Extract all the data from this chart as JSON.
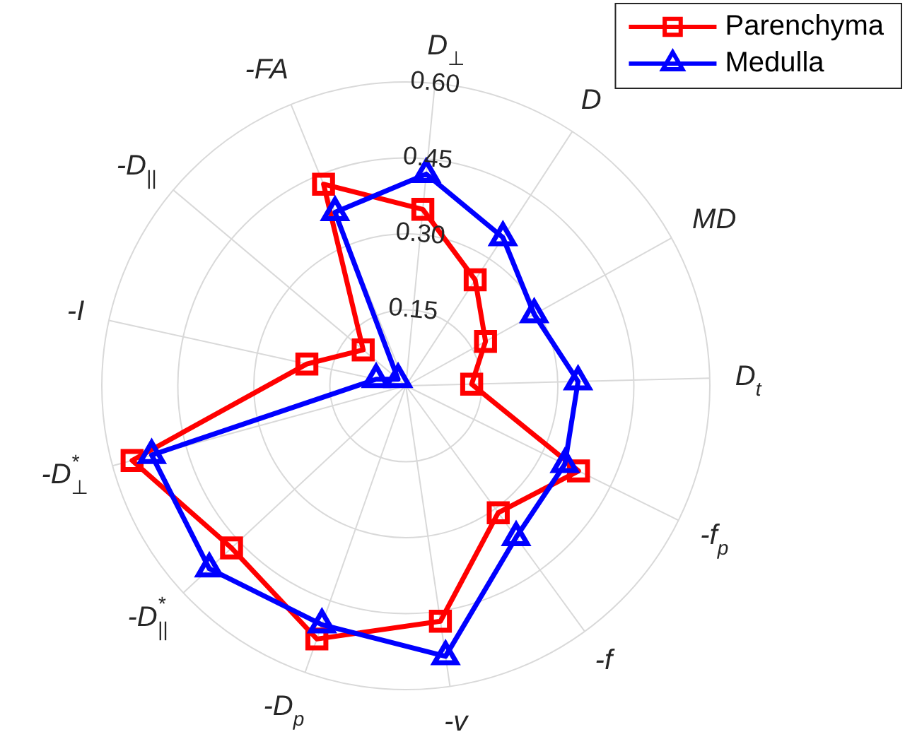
{
  "chart_data": {
    "type": "radar",
    "categories": [
      "D$_{⊥}$",
      "D",
      "MD",
      "D$_{t}$",
      "-f$_{p}$",
      "-f",
      "-v",
      "-D$_{p}$",
      "-D$^{*}$$_{||}$",
      "-D$^{*}$$_{⊥}$",
      "-I",
      "-D$_{||}$",
      "-FA"
    ],
    "series": [
      {
        "name": "Parenchyma",
        "color": "#ff0000",
        "marker": "square",
        "values": [
          0.35,
          0.25,
          0.18,
          0.13,
          0.38,
          0.31,
          0.47,
          0.53,
          0.47,
          0.56,
          0.2,
          0.11,
          0.43
        ]
      },
      {
        "name": "Medulla",
        "color": "#0000ff",
        "marker": "triangle",
        "values": [
          0.42,
          0.35,
          0.29,
          0.34,
          0.35,
          0.37,
          0.54,
          0.5,
          0.53,
          0.52,
          0.06,
          0.02,
          0.37
        ]
      }
    ],
    "ylim": [
      0,
      0.6
    ],
    "yticks": [
      {
        "value": 0.15,
        "label": "0.15"
      },
      {
        "value": 0.3,
        "label": "0.30"
      },
      {
        "value": 0.45,
        "label": "0.45"
      },
      {
        "value": 0.6,
        "label": "0.60"
      }
    ],
    "grid": true,
    "legend": "top right"
  }
}
